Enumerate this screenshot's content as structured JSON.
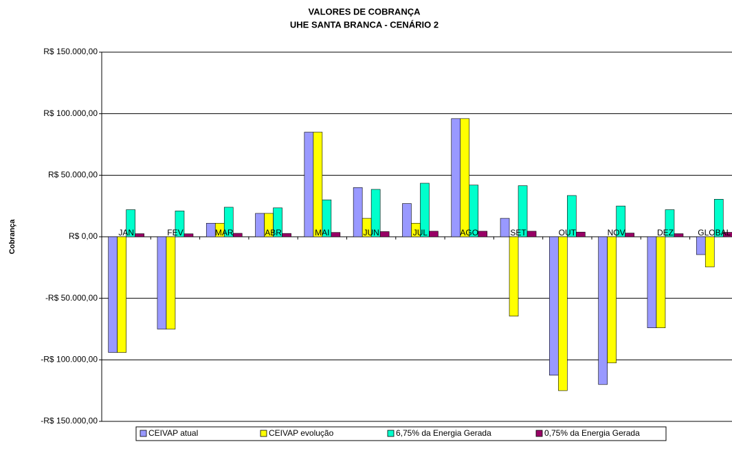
{
  "chart_data": {
    "type": "bar",
    "title": "VALORES DE COBRANÇA",
    "subtitle": "UHE SANTA BRANCA - CENÁRIO 2",
    "y_label": "Cobrança",
    "categories": [
      "JAN",
      "FEV",
      "MAR",
      "ABR",
      "MAI",
      "JUN",
      "JUL",
      "AGO",
      "SET",
      "OUT",
      "NOV",
      "DEZ",
      "GLOBAL"
    ],
    "series": [
      {
        "name": "CEIVAP atual",
        "color": "#9999ff",
        "values": [
          -94000,
          -75000,
          11000,
          19000,
          85000,
          40000,
          27000,
          96000,
          15000,
          -112500,
          -120000,
          -74000,
          -14500
        ]
      },
      {
        "name": "CEIVAP evolução",
        "color": "#ffff00",
        "values": [
          -94000,
          -75000,
          11000,
          19000,
          85000,
          15000,
          11000,
          96000,
          -64500,
          -125000,
          -102500,
          -74000,
          -24500
        ]
      },
      {
        "name": "6,75% da Energia Gerada",
        "color": "#00ffcc",
        "values": [
          22000,
          21000,
          24000,
          23500,
          30000,
          38500,
          43500,
          42000,
          41500,
          33500,
          25000,
          22000,
          30500
        ]
      },
      {
        "name": "0,75% da Energia Gerada",
        "color": "#990066",
        "values": [
          2500,
          2400,
          2800,
          2700,
          3500,
          4200,
          4500,
          4500,
          4500,
          3800,
          3000,
          2500,
          3600
        ]
      }
    ],
    "ylim": [
      -150000,
      150000
    ],
    "yticks": [
      {
        "value": -150000,
        "label": "-R$ 150.000,00"
      },
      {
        "value": -100000,
        "label": "-R$ 100.000,00"
      },
      {
        "value": -50000,
        "label": "-R$ 50.000,00"
      },
      {
        "value": 0,
        "label": "R$ 0,00"
      },
      {
        "value": 50000,
        "label": "R$ 50.000,00"
      },
      {
        "value": 100000,
        "label": "R$ 100.000,00"
      },
      {
        "value": 150000,
        "label": "R$ 150.000,00"
      }
    ],
    "grid": true,
    "legend": "bottom"
  }
}
